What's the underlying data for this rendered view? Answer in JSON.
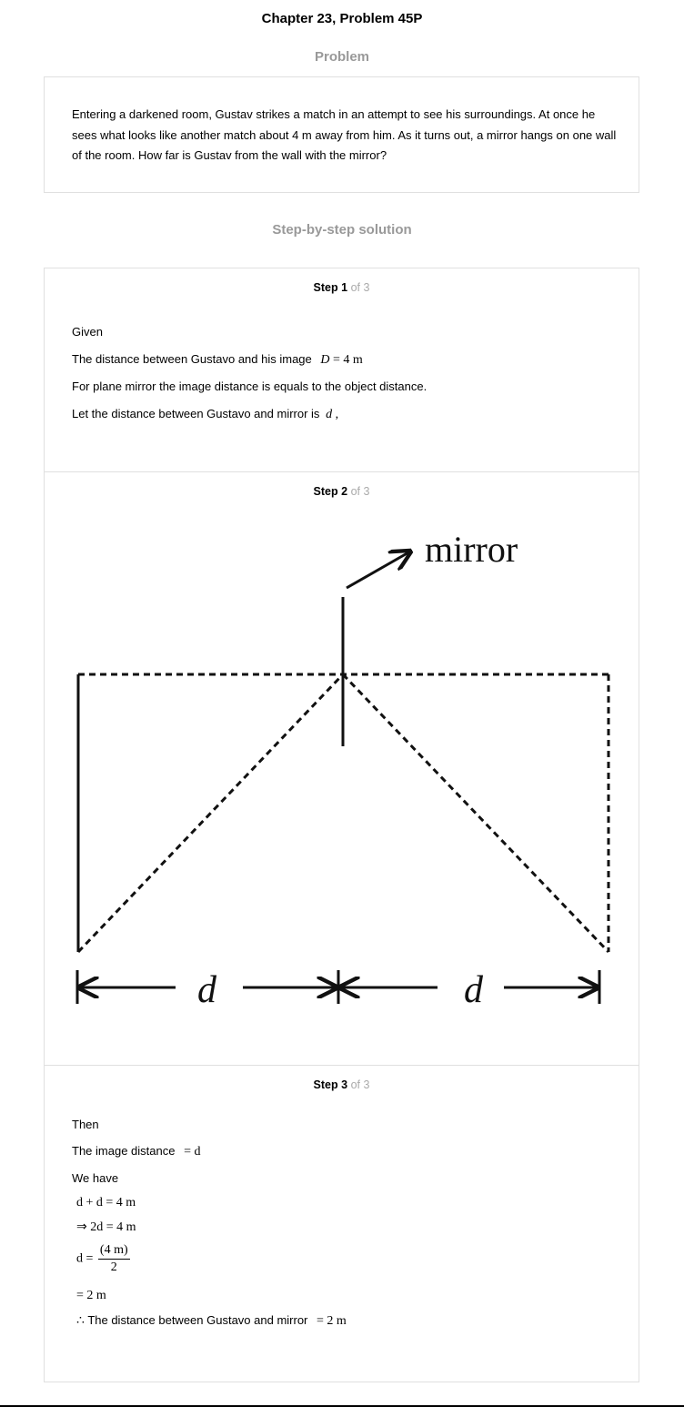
{
  "title": "Chapter 23, Problem 45P",
  "problem": {
    "heading": "Problem",
    "text": "Entering a darkened room, Gustav strikes a match in an attempt to see his surroundings. At once he sees what looks like another match about 4 m away from him. As it turns out, a mirror hangs on one wall of the room. How far is Gustav from the wall with the mirror?"
  },
  "solution": {
    "heading": "Step-by-step solution",
    "step_word": "Step",
    "of_word": "of",
    "total": "3",
    "steps": [
      {
        "number": "1",
        "given": "Given",
        "distance_text": "The distance between Gustavo and his image",
        "distance_eq_var": "D",
        "distance_eq_rest": " = 4 m",
        "plane_text": "For plane mirror the image distance is equals to the object distance.",
        "let_text": "Let the distance between Gustavo and mirror is",
        "let_var": "d",
        "let_suffix": " ,"
      },
      {
        "number": "2",
        "diagram": {
          "mirror_label": "mirror",
          "left_label": "d",
          "right_label": "d"
        }
      },
      {
        "number": "3",
        "then": "Then",
        "image_text": "The image distance",
        "image_eq": "= d",
        "we_have": "We have",
        "eq1": "d + d = 4 m",
        "eq2": "⇒ 2d = 4 m",
        "eq3_lhs": "d =",
        "eq3_num": "(4 m)",
        "eq3_den": "2",
        "eq4": "= 2 m",
        "therefore_symbol": "∴",
        "conclusion_text": "The distance between Gustavo and mirror",
        "conclusion_eq": "= 2 m"
      }
    ]
  }
}
